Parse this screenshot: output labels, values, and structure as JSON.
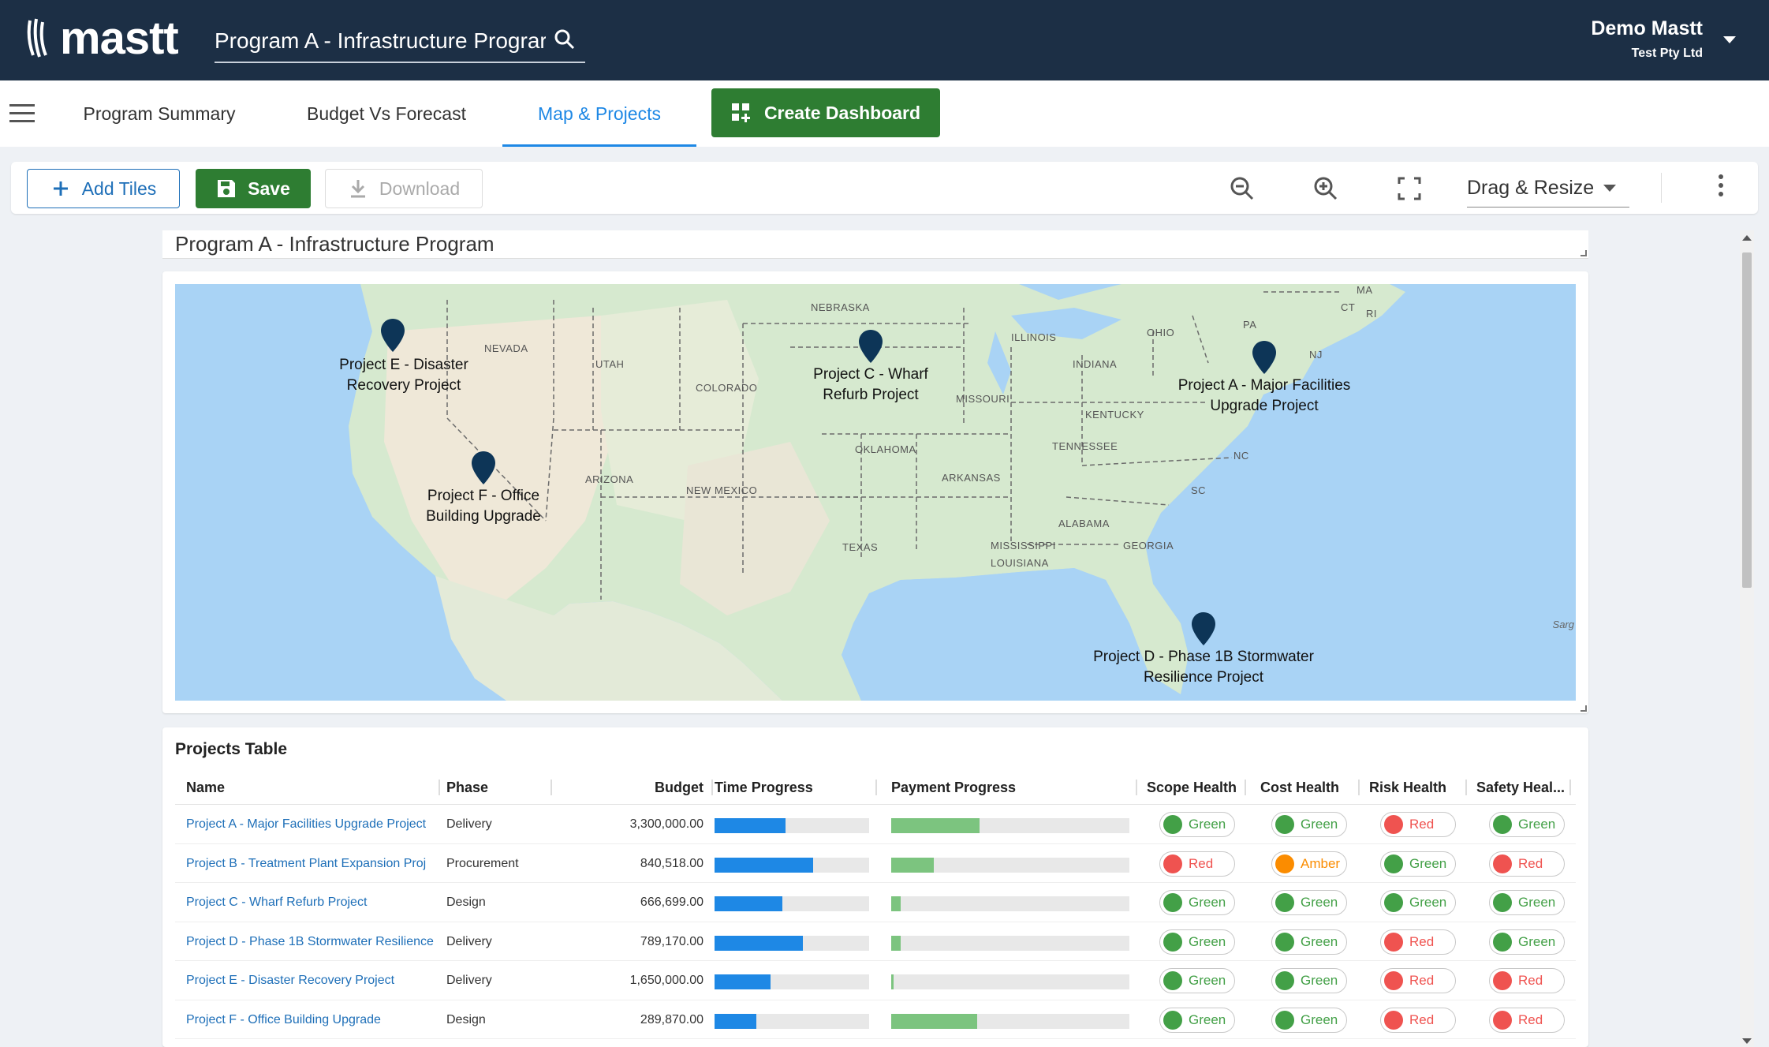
{
  "header": {
    "logo_text": "mastt",
    "search_value": "Program A - Infrastructure Prograr",
    "user_name": "Demo Mastt",
    "user_company": "Test Pty Ltd"
  },
  "nav": {
    "tabs": [
      {
        "label": "Program Summary"
      },
      {
        "label": "Budget Vs Forecast"
      },
      {
        "label": "Map & Projects",
        "active": true
      }
    ],
    "create_dashboard_label": "Create Dashboard"
  },
  "toolbar": {
    "add_tiles_label": "Add Tiles",
    "save_label": "Save",
    "download_label": "Download",
    "drag_resize_label": "Drag & Resize"
  },
  "dashboard": {
    "title": "Program A - Infrastructure Program"
  },
  "map": {
    "attribution": "Sarg",
    "state_labels": [
      "NEBRASKA",
      "NEVADA",
      "UTAH",
      "ILLINOIS",
      "OHIO",
      "PA",
      "NJ",
      "CT",
      "RI",
      "MA",
      "COLORADO",
      "INDIANA",
      "MISSOURI",
      "KENTUCKY",
      "TENNESSEE",
      "OKLAHOMA",
      "ARKANSAS",
      "ARIZONA",
      "NEW MEXICO",
      "NC",
      "SC",
      "ALABAMA",
      "MISSISSIPPI",
      "GEORGIA",
      "TEXAS",
      "LOUISIANA"
    ],
    "pins": [
      {
        "line1": "Project E - Disaster",
        "line2": "Recovery Project"
      },
      {
        "line1": "Project C - Wharf",
        "line2": "Refurb Project"
      },
      {
        "line1": "Project A - Major Facilities",
        "line2": "Upgrade Project"
      },
      {
        "line1": "Project F - Office",
        "line2": "Building Upgrade"
      },
      {
        "line1": "Project D - Phase 1B Stormwater",
        "line2": "Resilience Project"
      }
    ]
  },
  "projects_table": {
    "title": "Projects Table",
    "columns": [
      "Name",
      "Phase",
      "Budget",
      "Time Progress",
      "Payment Progress",
      "Scope Health",
      "Cost Health",
      "Risk Health",
      "Safety Heal..."
    ],
    "rows": [
      {
        "name": "Project A - Major Facilities Upgrade Project",
        "phase": "Delivery",
        "budget": "3,300,000.00",
        "time_progress": 0.46,
        "payment_progress": 0.37,
        "scope": "Green",
        "cost": "Green",
        "risk": "Red",
        "safety": "Green"
      },
      {
        "name": "Project B - Treatment Plant Expansion Proj",
        "phase": "Procurement",
        "budget": "840,518.00",
        "time_progress": 0.64,
        "payment_progress": 0.18,
        "scope": "Red",
        "cost": "Amber",
        "risk": "Green",
        "safety": "Red"
      },
      {
        "name": "Project C - Wharf Refurb Project",
        "phase": "Design",
        "budget": "666,699.00",
        "time_progress": 0.44,
        "payment_progress": 0.04,
        "scope": "Green",
        "cost": "Green",
        "risk": "Green",
        "safety": "Green"
      },
      {
        "name": "Project D - Phase 1B Stormwater Resilience",
        "phase": "Delivery",
        "budget": "789,170.00",
        "time_progress": 0.57,
        "payment_progress": 0.04,
        "scope": "Green",
        "cost": "Green",
        "risk": "Red",
        "safety": "Green"
      },
      {
        "name": "Project E - Disaster Recovery Project",
        "phase": "Delivery",
        "budget": "1,650,000.00",
        "time_progress": 0.36,
        "payment_progress": 0.01,
        "scope": "Green",
        "cost": "Green",
        "risk": "Red",
        "safety": "Red"
      },
      {
        "name": "Project F - Office Building Upgrade",
        "phase": "Design",
        "budget": "289,870.00",
        "time_progress": 0.27,
        "payment_progress": 0.36,
        "scope": "Green",
        "cost": "Green",
        "risk": "Red",
        "safety": "Red"
      }
    ]
  },
  "colors": {
    "header_bg": "#1c2f45",
    "accent_blue": "#1e88e5",
    "brand_green": "#2e7d32",
    "time_bar": "#1e88e5",
    "payment_bar": "#7cc47f",
    "status_green": "#43a047",
    "status_red": "#ef5350",
    "status_amber": "#fb8c00"
  }
}
